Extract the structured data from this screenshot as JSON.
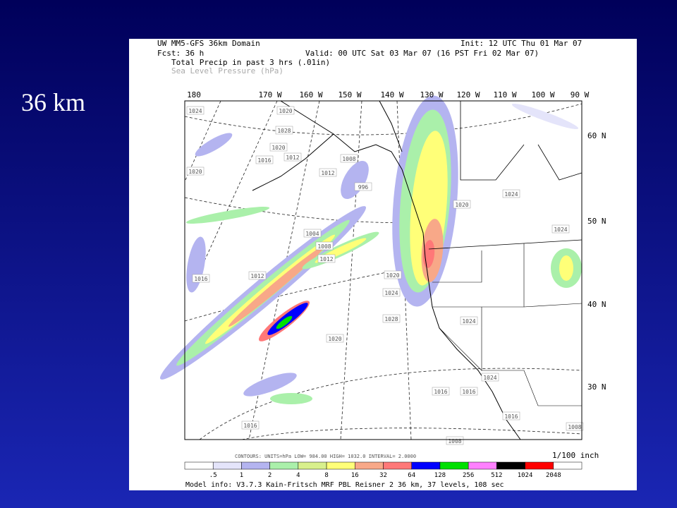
{
  "slide_title": "36 km",
  "header": {
    "domain": "UW MM5-GFS 36km Domain",
    "init": "Init: 12 UTC Thu 01 Mar 07",
    "fcst": "Fcst: 36 h",
    "valid": "Valid: 00 UTC Sat 03 Mar 07 (16 PST Fri 02 Mar 07)",
    "field1": "Total Precip in past 3 hrs (.01in)",
    "field2": "Sea Level Pressure (hPa)"
  },
  "longitudes": [
    "180",
    "170 W",
    "160 W",
    "150 W",
    "140 W",
    "130 W",
    "120 W",
    "110 W",
    "100 W",
    "90 W"
  ],
  "latitudes": [
    "60 N",
    "50 N",
    "40 N",
    "30 N"
  ],
  "contour_labels": [
    "1024",
    "1020",
    "1028",
    "1020",
    "1020",
    "1016",
    "1012",
    "1008",
    "1012",
    "996",
    "1004",
    "1008",
    "1012",
    "1016",
    "1012",
    "1020",
    "1024",
    "1028",
    "1020",
    "1024",
    "1024",
    "1008",
    "1024",
    "1016",
    "1016",
    "1016",
    "1024",
    "1008",
    "1016",
    "1020"
  ],
  "footer": {
    "contours": "CONTOURS:  UNITS=hPa  LOW=  984.00     HIGH=  1032.0     INTERVAL=   2.0000",
    "units": "1/100 inch",
    "model_info": "Model info: V3.7.3 Kain-Fritsch MRF PBL     Reisner 2     36 km, 37 levels, 108 sec"
  },
  "colorbar": {
    "labels": [
      ".5",
      "1",
      "2",
      "4",
      "8",
      "16",
      "32",
      "64",
      "128",
      "256",
      "512",
      "1024",
      "2048"
    ],
    "colors": [
      "#ffffff",
      "#e4e4fa",
      "#b4b4f0",
      "#aaf0aa",
      "#d8f08c",
      "#ffff78",
      "#f8a888",
      "#ff7878",
      "#0000ff",
      "#00e000",
      "#ff80ff",
      "#000000",
      "#ff0000",
      "#ffffff"
    ]
  }
}
